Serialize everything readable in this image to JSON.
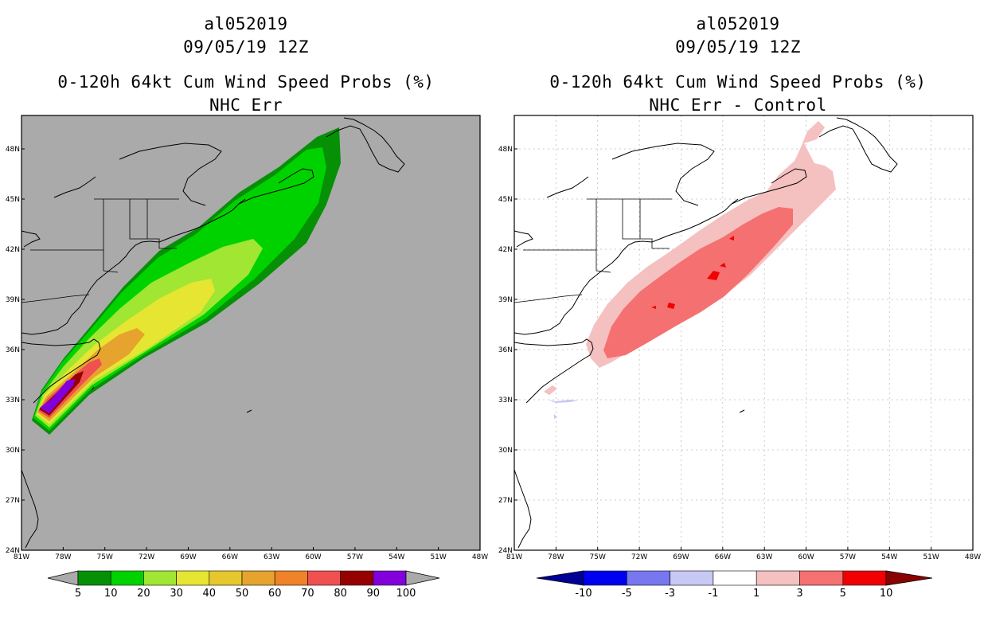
{
  "colors": {
    "gray_bg": "#aaaaaa",
    "outline": "#000000",
    "grid": "#bdbdbd",
    "prob_bins": [
      "#069006",
      "#00d200",
      "#a0e632",
      "#e6e632",
      "#e6c82d",
      "#e6a32d",
      "#f08228",
      "#f05050",
      "#960000",
      "#8200dc"
    ],
    "diff_bins": [
      "#000096",
      "#0000f0",
      "#7777f0",
      "#c8c8f5",
      "#ffffff",
      "#f5c0c0",
      "#f57070",
      "#f00000",
      "#8b0000"
    ]
  },
  "left_panel": {
    "title_line1": "al052019",
    "title_line2": "09/05/19 12Z",
    "title_line3": "0-120h 64kt Cum Wind Speed Probs (%)",
    "title_line4": "NHC Err",
    "colorbar_labels": [
      "5",
      "10",
      "20",
      "30",
      "40",
      "50",
      "60",
      "70",
      "80",
      "90",
      "100"
    ]
  },
  "right_panel": {
    "title_line1": "al052019",
    "title_line2": "09/05/19 12Z",
    "title_line3": "0-120h 64kt Cum Wind Speed Probs (%)",
    "title_line4": "NHC Err - Control",
    "colorbar_labels": [
      "-10",
      "-5",
      "-3",
      "-1",
      "1",
      "3",
      "5",
      "10"
    ]
  },
  "axes": {
    "lon_labels": [
      "81W",
      "78W",
      "75W",
      "72W",
      "69W",
      "66W",
      "63W",
      "60W",
      "57W",
      "54W",
      "51W",
      "48W"
    ],
    "lat_labels": [
      "24N",
      "27N",
      "30N",
      "33N",
      "36N",
      "39N",
      "42N",
      "45N",
      "48N"
    ]
  }
}
